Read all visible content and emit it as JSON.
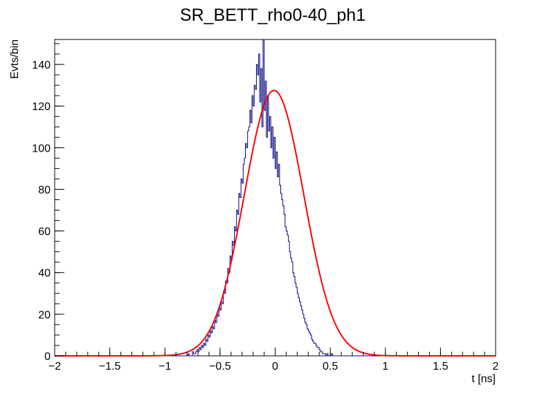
{
  "chart_data": {
    "type": "histogram",
    "title": "SR_BETT_rho0-40_ph1",
    "xlabel": "t [ns]",
    "ylabel": "Evts/bin",
    "xlim": [
      -2,
      2
    ],
    "ylim": [
      0,
      152
    ],
    "x_ticks": [
      -2,
      -1.5,
      -1,
      -0.5,
      0,
      0.5,
      1,
      1.5,
      2
    ],
    "x_tick_labels": [
      "−2",
      "−1.5",
      "−1",
      "−0.5",
      "0",
      "0.5",
      "1",
      "1.5",
      "2"
    ],
    "y_ticks": [
      0,
      20,
      40,
      60,
      80,
      100,
      120,
      140
    ],
    "y_tick_labels": [
      "0",
      "20",
      "40",
      "60",
      "80",
      "100",
      "120",
      "140"
    ],
    "histogram": {
      "color": "#000080",
      "bin_edges_start": -0.8,
      "bin_width": 0.01,
      "values": [
        0,
        1,
        0,
        0,
        0,
        2,
        1,
        1,
        2,
        3,
        2,
        4,
        3,
        5,
        4,
        6,
        5,
        8,
        7,
        10,
        9,
        12,
        11,
        14,
        13,
        17,
        16,
        20,
        19,
        23,
        22,
        26,
        25,
        31,
        30,
        36,
        35,
        42,
        40,
        48,
        46,
        55,
        53,
        62,
        60,
        70,
        68,
        78,
        76,
        85,
        83,
        92,
        95,
        102,
        100,
        108,
        110,
        118,
        112,
        125,
        120,
        130,
        128,
        140,
        135,
        145,
        122,
        138,
        110,
        152,
        118,
        132,
        105,
        125,
        108,
        115,
        100,
        110,
        95,
        105,
        90,
        98,
        86,
        92,
        82,
        78,
        75,
        72,
        68,
        62,
        60,
        58,
        55,
        50,
        47,
        45,
        40,
        38,
        35,
        33,
        30,
        28,
        26,
        24,
        22,
        20,
        18,
        16,
        15,
        13,
        12,
        11,
        10,
        8,
        7,
        6,
        6,
        5,
        4,
        4,
        3,
        2,
        2,
        1,
        1,
        1,
        0,
        1,
        0,
        0,
        0,
        1,
        0,
        0,
        0,
        0,
        0
      ]
    },
    "fit": {
      "type": "gaussian",
      "color": "#ff0000",
      "amplitude": 127.5,
      "mean": -0.01,
      "sigma": 0.27
    }
  }
}
